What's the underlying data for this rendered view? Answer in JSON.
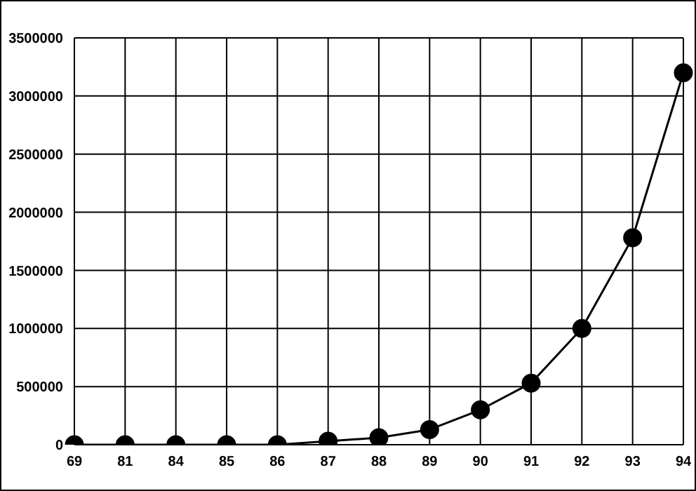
{
  "chart_data": {
    "type": "line",
    "categories": [
      "69",
      "81",
      "84",
      "85",
      "86",
      "87",
      "88",
      "89",
      "90",
      "91",
      "92",
      "93",
      "94"
    ],
    "series": [
      {
        "color": "#000000",
        "values": [
          0,
          0,
          0,
          0,
          0,
          30000,
          60000,
          130000,
          300000,
          530000,
          1000000,
          1780000,
          3200000
        ]
      }
    ],
    "ylim": [
      0,
      3500000
    ],
    "yticks": [
      0,
      500000,
      1000000,
      1500000,
      2000000,
      2500000,
      3000000,
      3500000
    ],
    "grid": true,
    "marker": "circle",
    "line_style": "solid"
  }
}
